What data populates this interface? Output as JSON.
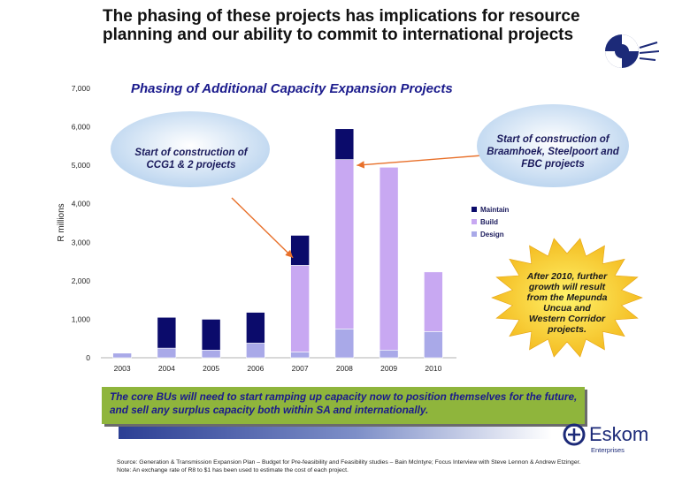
{
  "page": {
    "title": "The phasing of these projects has implications for resource planning and our ability to commit to international projects",
    "callout": "The core BUs will need to start ramping up capacity now to position themselves for the future, and sell any surplus capacity both within SA and internationally.",
    "source_line": "Source: Generation & Transmission Expansion Plan – Budget for Pre-feasibility and Feasibility studies – Bain McIntyre; Focus Interview with Steve Lennon & Andrew Etzinger.",
    "note_line": "Note: An exchange rate of R8 to $1 has been used to estimate the cost of each project.",
    "logo": {
      "name": "Eskom",
      "tagline": "Enterprises"
    },
    "colors": {
      "maintain": "#0b0b6b",
      "build": "#c8a8f2",
      "design": "#a9a9e8",
      "callout": "#8fb53c",
      "arrow": "#e8702a"
    }
  },
  "chart_data": {
    "type": "bar",
    "stacked": true,
    "title": "Phasing of Additional Capacity Expansion Projects",
    "ylabel": "R millions",
    "xlabel": "",
    "ylim": [
      0,
      7000
    ],
    "yticks": [
      0,
      1000,
      2000,
      3000,
      4000,
      5000,
      6000,
      7000
    ],
    "ytick_labels": [
      "0",
      "1,000",
      "2,000",
      "3,000",
      "4,000",
      "5,000",
      "6,000",
      "7,000"
    ],
    "categories": [
      "2003",
      "2004",
      "2005",
      "2006",
      "2007",
      "2008",
      "2009",
      "2010"
    ],
    "series": [
      {
        "name": "Design",
        "color": "#a9a9e8",
        "values": [
          120,
          250,
          200,
          380,
          150,
          750,
          200,
          680
        ]
      },
      {
        "name": "Build",
        "color": "#c8a8f2",
        "values": [
          0,
          0,
          0,
          0,
          2250,
          4400,
          4750,
          1550
        ]
      },
      {
        "name": "Maintain",
        "color": "#0b0b6b",
        "values": [
          0,
          800,
          800,
          800,
          780,
          800,
          0,
          0
        ]
      }
    ],
    "legend": {
      "placement": "right",
      "entries": [
        "Maintain",
        "Build",
        "Design"
      ]
    },
    "annotations": [
      {
        "text": "Start of construction of CCG1 & 2 projects",
        "points_to": "2007"
      },
      {
        "text": "Start of construction of Braamhoek, Steelpoort and FBC projects",
        "points_to": "2008"
      },
      {
        "text": "After 2010, further growth will result from the Mepunda Uncua and Western Corridor projects."
      }
    ]
  }
}
